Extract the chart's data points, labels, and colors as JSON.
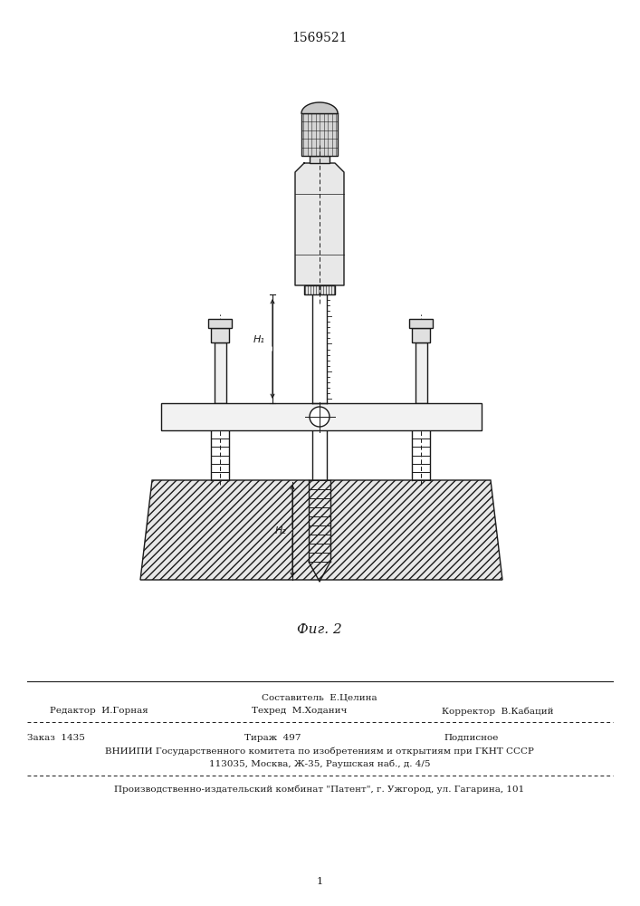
{
  "title": "1569521",
  "fig_label": "Фиг. 2",
  "background_color": "#ffffff",
  "line_color": "#1a1a1a",
  "h1_label": "H₁",
  "h2_label": "H₂",
  "editor_line1": "Составитель  Е.Целина",
  "editor_line2_left": "Редактор  И.Горная",
  "editor_line2_mid": "Техред  М.Ходанич",
  "editor_line2_right": "Корректор  В.Кабаций",
  "info_line1_left": "Заказ  1435",
  "info_line1_mid": "Тираж  497",
  "info_line1_right": "Подписное",
  "info_line2": "ВНИИПИ Государственного комитета по изобретениям и открытиям при ГКНТ СССР",
  "info_line3": "113035, Москва, Ж-35, Раушская наб., д. 4/5",
  "info_line4": "Производственно-издательский комбинат \"Патент\", г. Ужгород, ул. Гагарина, 101"
}
